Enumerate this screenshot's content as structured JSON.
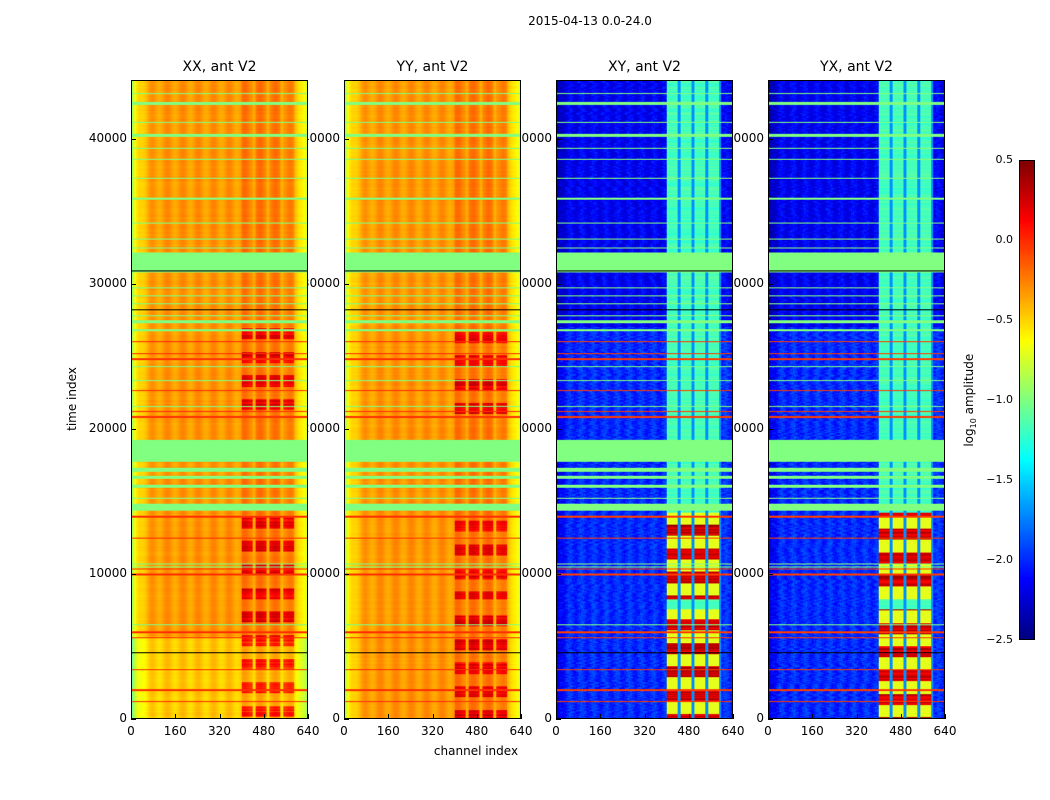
{
  "figure_title": "2015-04-13 0.0-24.0",
  "chart_data": {
    "type": "heatmap",
    "title": "2015-04-13 0.0-24.0",
    "xlabel": "channel index",
    "ylabel": "time index",
    "xlim": [
      0,
      640
    ],
    "ylim": [
      0,
      44070
    ],
    "xticks": [
      "0",
      "160",
      "320",
      "480",
      "640"
    ],
    "xtick_values": [
      0,
      160,
      320,
      480,
      640
    ],
    "yticks": [
      "0",
      "10000",
      "20000",
      "30000",
      "40000"
    ],
    "ytick_values": [
      0,
      10000,
      20000,
      30000,
      40000
    ],
    "colormap": "jet",
    "colorbar": {
      "label_main": "log",
      "label_sub": "10",
      "label_rest": " amplitude",
      "vmin": -2.5,
      "vmax": 0.5,
      "ticks": [
        "0.5",
        "0.0",
        "−0.5",
        "−1.0",
        "−1.5",
        "−2.0",
        "−2.5"
      ],
      "tick_values": [
        0.5,
        0.0,
        -0.5,
        -1.0,
        -1.5,
        -2.0,
        -2.5
      ]
    },
    "panels": [
      {
        "title": "XX, ant V2",
        "kind": "auto"
      },
      {
        "title": "YY, ant V2",
        "kind": "auto"
      },
      {
        "title": "XY, ant V2",
        "kind": "cross"
      },
      {
        "title": "YX, ant V2",
        "kind": "cross"
      }
    ],
    "flagged_time_bands": [
      [
        14300,
        14800
      ],
      [
        15900,
        16100
      ],
      [
        16500,
        16700
      ],
      [
        17000,
        17300
      ],
      [
        17700,
        19200
      ],
      [
        30800,
        32200
      ],
      [
        27300,
        27500
      ],
      [
        40200,
        40400
      ],
      [
        42400,
        42600
      ]
    ],
    "flagged_time_lines": [
      6400,
      10400,
      10600,
      15200,
      21500,
      23300,
      24300,
      26800,
      27800,
      28600,
      29200,
      29700,
      32500,
      33100,
      34200,
      35900,
      37300,
      38600,
      39400,
      41200,
      43200
    ],
    "red_time_lines": [
      1100,
      1900,
      3300,
      5500,
      5900,
      9900,
      10300,
      12400,
      13900,
      20800,
      21200,
      22600,
      24800,
      25200,
      26000
    ],
    "black_time_lines": [
      4500,
      28200,
      30900
    ],
    "strong_channel_range": [
      400,
      600
    ],
    "strong_time_ranges": [
      [
        0,
        7500
      ],
      [
        8200,
        14200
      ],
      [
        21000,
        27000
      ]
    ]
  }
}
